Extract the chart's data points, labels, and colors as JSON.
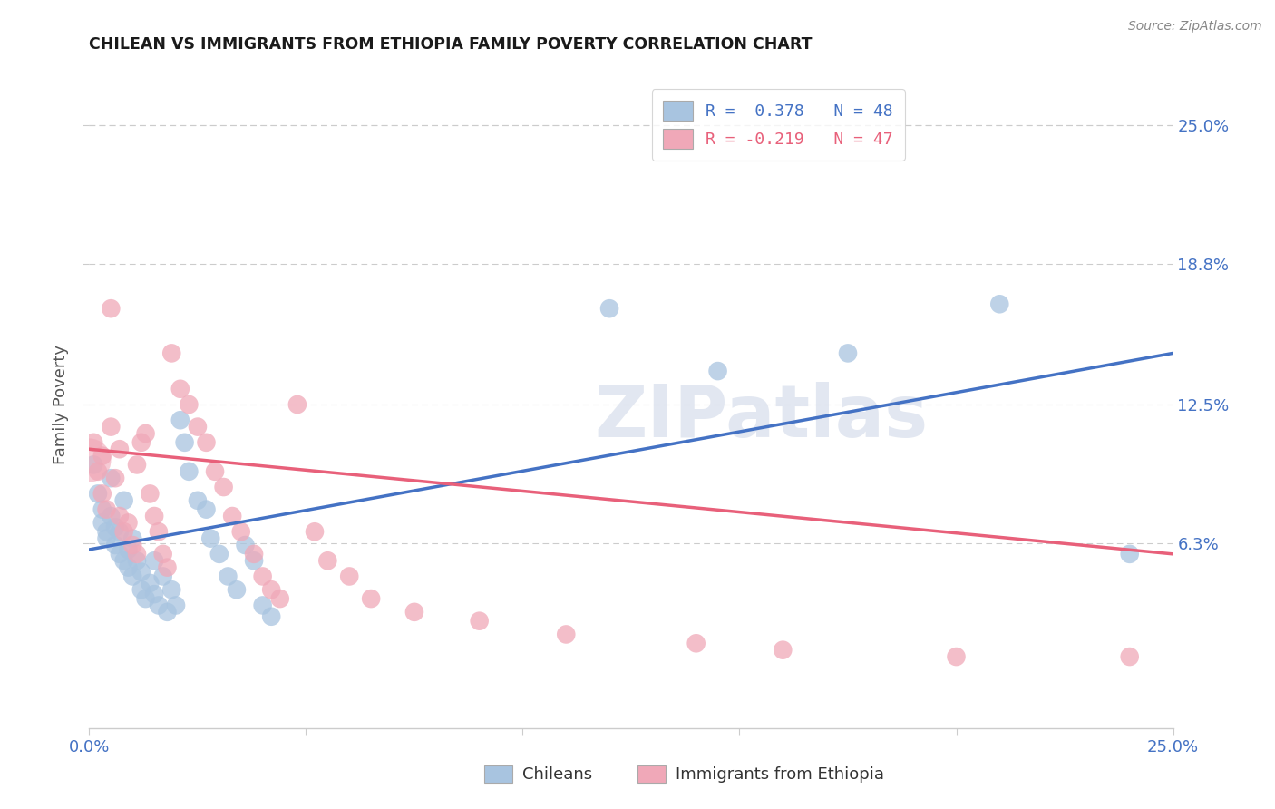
{
  "title": "CHILEAN VS IMMIGRANTS FROM ETHIOPIA FAMILY POVERTY CORRELATION CHART",
  "source": "Source: ZipAtlas.com",
  "ylabel": "Family Poverty",
  "ytick_vals": [
    0.063,
    0.125,
    0.188,
    0.25
  ],
  "ytick_labels": [
    "6.3%",
    "12.5%",
    "18.8%",
    "25.0%"
  ],
  "xlim": [
    0.0,
    0.25
  ],
  "ylim": [
    -0.02,
    0.27
  ],
  "watermark": "ZIPatlas",
  "legend_blue_r": "R =  0.378",
  "legend_blue_n": "N = 48",
  "legend_pink_r": "R = -0.219",
  "legend_pink_n": "N = 47",
  "legend_blue_label": "Chileans",
  "legend_pink_label": "Immigrants from Ethiopia",
  "blue_color": "#a8c4e0",
  "pink_color": "#f0a8b8",
  "blue_line_color": "#4472c4",
  "pink_line_color": "#e8607a",
  "title_color": "#1a1a1a",
  "axis_label_color": "#4472c4",
  "blue_scatter": [
    [
      0.001,
      0.098
    ],
    [
      0.002,
      0.085
    ],
    [
      0.003,
      0.078
    ],
    [
      0.003,
      0.072
    ],
    [
      0.004,
      0.068
    ],
    [
      0.004,
      0.065
    ],
    [
      0.005,
      0.075
    ],
    [
      0.005,
      0.092
    ],
    [
      0.006,
      0.07
    ],
    [
      0.006,
      0.062
    ],
    [
      0.007,
      0.058
    ],
    [
      0.007,
      0.068
    ],
    [
      0.008,
      0.055
    ],
    [
      0.008,
      0.082
    ],
    [
      0.009,
      0.06
    ],
    [
      0.009,
      0.052
    ],
    [
      0.01,
      0.065
    ],
    [
      0.01,
      0.048
    ],
    [
      0.011,
      0.055
    ],
    [
      0.012,
      0.042
    ],
    [
      0.012,
      0.05
    ],
    [
      0.013,
      0.038
    ],
    [
      0.014,
      0.045
    ],
    [
      0.015,
      0.04
    ],
    [
      0.015,
      0.055
    ],
    [
      0.016,
      0.035
    ],
    [
      0.017,
      0.048
    ],
    [
      0.018,
      0.032
    ],
    [
      0.019,
      0.042
    ],
    [
      0.02,
      0.035
    ],
    [
      0.021,
      0.118
    ],
    [
      0.022,
      0.108
    ],
    [
      0.023,
      0.095
    ],
    [
      0.025,
      0.082
    ],
    [
      0.027,
      0.078
    ],
    [
      0.028,
      0.065
    ],
    [
      0.03,
      0.058
    ],
    [
      0.032,
      0.048
    ],
    [
      0.034,
      0.042
    ],
    [
      0.036,
      0.062
    ],
    [
      0.038,
      0.055
    ],
    [
      0.04,
      0.035
    ],
    [
      0.042,
      0.03
    ],
    [
      0.12,
      0.168
    ],
    [
      0.145,
      0.14
    ],
    [
      0.175,
      0.148
    ],
    [
      0.21,
      0.17
    ],
    [
      0.24,
      0.058
    ]
  ],
  "pink_scatter": [
    [
      0.001,
      0.108
    ],
    [
      0.002,
      0.095
    ],
    [
      0.003,
      0.085
    ],
    [
      0.003,
      0.102
    ],
    [
      0.004,
      0.078
    ],
    [
      0.005,
      0.115
    ],
    [
      0.005,
      0.168
    ],
    [
      0.006,
      0.092
    ],
    [
      0.007,
      0.105
    ],
    [
      0.007,
      0.075
    ],
    [
      0.008,
      0.068
    ],
    [
      0.009,
      0.072
    ],
    [
      0.01,
      0.062
    ],
    [
      0.011,
      0.058
    ],
    [
      0.011,
      0.098
    ],
    [
      0.012,
      0.108
    ],
    [
      0.013,
      0.112
    ],
    [
      0.014,
      0.085
    ],
    [
      0.015,
      0.075
    ],
    [
      0.016,
      0.068
    ],
    [
      0.017,
      0.058
    ],
    [
      0.018,
      0.052
    ],
    [
      0.019,
      0.148
    ],
    [
      0.021,
      0.132
    ],
    [
      0.023,
      0.125
    ],
    [
      0.025,
      0.115
    ],
    [
      0.027,
      0.108
    ],
    [
      0.029,
      0.095
    ],
    [
      0.031,
      0.088
    ],
    [
      0.033,
      0.075
    ],
    [
      0.035,
      0.068
    ],
    [
      0.038,
      0.058
    ],
    [
      0.04,
      0.048
    ],
    [
      0.042,
      0.042
    ],
    [
      0.044,
      0.038
    ],
    [
      0.048,
      0.125
    ],
    [
      0.052,
      0.068
    ],
    [
      0.055,
      0.055
    ],
    [
      0.06,
      0.048
    ],
    [
      0.065,
      0.038
    ],
    [
      0.075,
      0.032
    ],
    [
      0.09,
      0.028
    ],
    [
      0.11,
      0.022
    ],
    [
      0.14,
      0.018
    ],
    [
      0.16,
      0.015
    ],
    [
      0.2,
      0.012
    ],
    [
      0.24,
      0.012
    ]
  ],
  "blue_trendline": [
    [
      0.0,
      0.06
    ],
    [
      0.25,
      0.148
    ]
  ],
  "pink_trendline": [
    [
      0.0,
      0.105
    ],
    [
      0.25,
      0.058
    ]
  ],
  "background_color": "#ffffff",
  "grid_color": "#cccccc"
}
